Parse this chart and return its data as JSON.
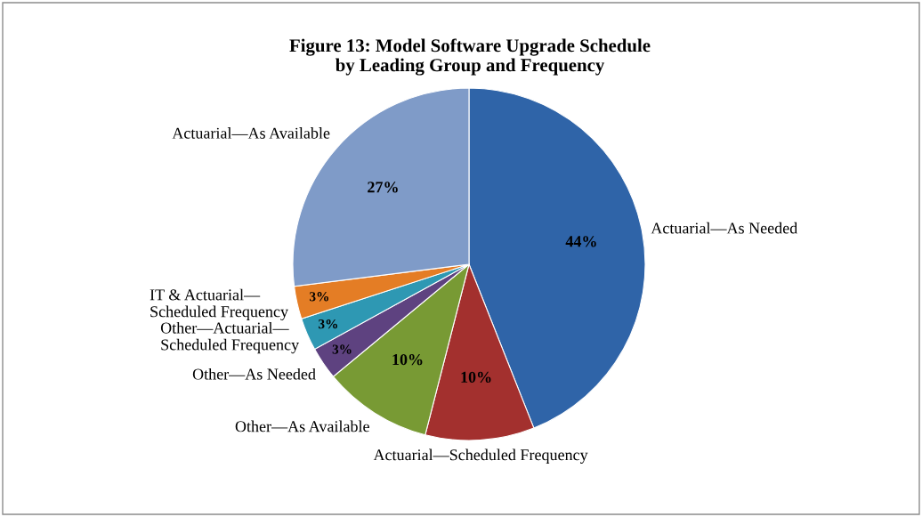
{
  "chart_data": {
    "type": "pie",
    "title": "Figure 13: Model Software Upgrade Schedule\nby Leading Group and Frequency",
    "categories": [
      "Actuarial—As Needed",
      "Actuarial—Scheduled Frequency",
      "Other—As Available",
      "Other—As Needed",
      "Other—Actuarial—\nScheduled Frequency",
      "IT & Actuarial—\nScheduled Frequency",
      "Actuarial—As Available"
    ],
    "values": [
      44,
      10,
      10,
      3,
      3,
      3,
      27
    ],
    "value_labels": [
      "44%",
      "10%",
      "10%",
      "3%",
      "3%",
      "3%",
      "27%"
    ],
    "colors": [
      "#2f64a8",
      "#a3302e",
      "#789a34",
      "#5e4280",
      "#2e98b3",
      "#e47d25",
      "#7f9bc8"
    ],
    "legend": false
  }
}
